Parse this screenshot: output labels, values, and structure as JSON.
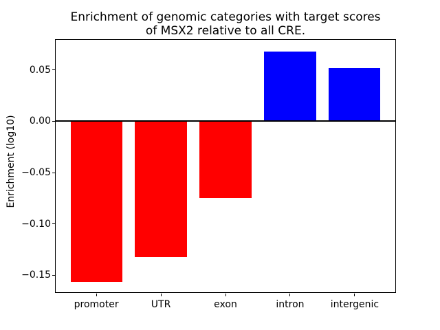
{
  "figure": {
    "background": "#ffffff",
    "text_color": "#000000"
  },
  "chart_data": {
    "type": "bar",
    "title": "Enrichment of genomic categories with target scores\nof MSX2 relative to all CRE.",
    "title_lines": [
      "Enrichment of genomic categories with target scores",
      "of MSX2 relative to all CRE."
    ],
    "xlabel": "",
    "ylabel": "Enrichment (log10)",
    "categories": [
      "promoter",
      "UTR",
      "exon",
      "intron",
      "intergenic"
    ],
    "values": [
      -0.157,
      -0.133,
      -0.075,
      0.068,
      0.052
    ],
    "bar_colors": [
      "#ff0000",
      "#ff0000",
      "#ff0000",
      "#0000ff",
      "#0000ff"
    ],
    "negative_color": "#ff0000",
    "positive_color": "#0000ff",
    "ylim": [
      -0.1678,
      0.0799
    ],
    "yticks": [
      0.05,
      0.0,
      -0.05,
      -0.1,
      -0.15
    ],
    "ytick_labels": [
      "0.05",
      "0.00",
      "−0.05",
      "−0.10",
      "−0.15"
    ],
    "zero_line": true,
    "grid": false,
    "legend": null,
    "bar_width_fraction": 0.8,
    "x_padding_units": 0.64
  }
}
